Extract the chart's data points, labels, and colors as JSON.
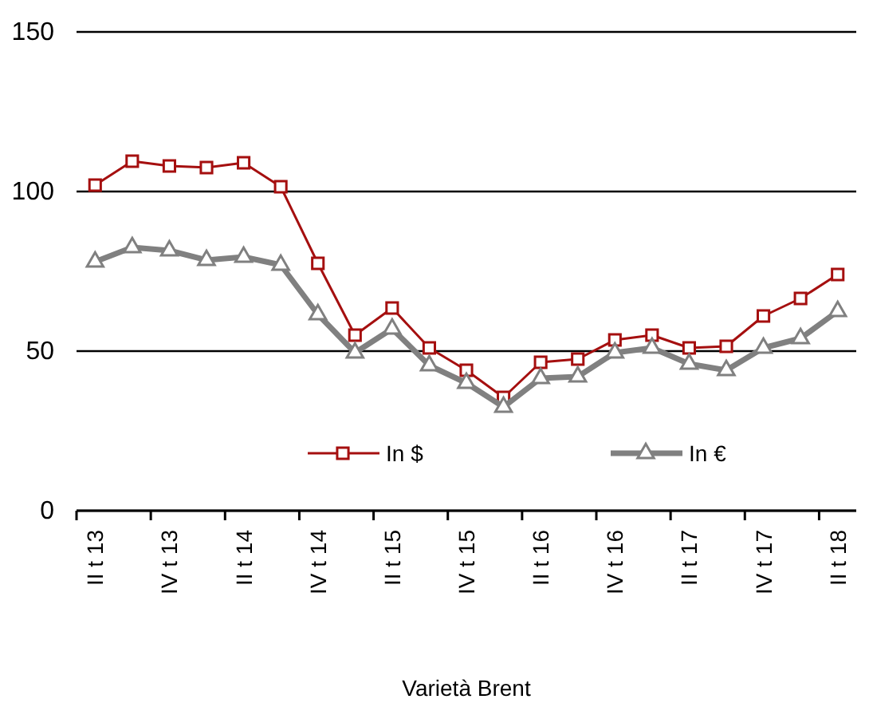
{
  "chart_data": {
    "type": "line",
    "xlabel": "Varietà Brent",
    "categories": [
      "II t 13",
      null,
      "IV t 13",
      null,
      "II t 14",
      null,
      "IV t 14",
      null,
      "II t 15",
      null,
      "IV t 15",
      null,
      "II t 16",
      null,
      "IV t 16",
      null,
      "II t 17",
      null,
      "IV t 17",
      null,
      "II t 18"
    ],
    "series": [
      {
        "name": "In $",
        "color": "#a50f0f",
        "marker": "square",
        "values": [
          102,
          109.5,
          108,
          107.5,
          109,
          101.5,
          77.5,
          55,
          63.5,
          51,
          44,
          35.5,
          46.5,
          47.5,
          53.5,
          55,
          51,
          51.5,
          61,
          66.5,
          74
        ]
      },
      {
        "name": "In €",
        "color": "#808080",
        "marker": "triangle",
        "values": [
          78,
          82.5,
          81.5,
          78.5,
          79.5,
          77,
          61.5,
          49.5,
          57,
          45.5,
          40,
          32.5,
          41.5,
          42,
          49.5,
          51,
          46,
          44,
          51,
          54,
          62.5
        ]
      }
    ],
    "ylim": [
      0,
      150
    ],
    "yticks": [
      0,
      50,
      100,
      150
    ],
    "grid": "y",
    "legend": "bottom"
  }
}
